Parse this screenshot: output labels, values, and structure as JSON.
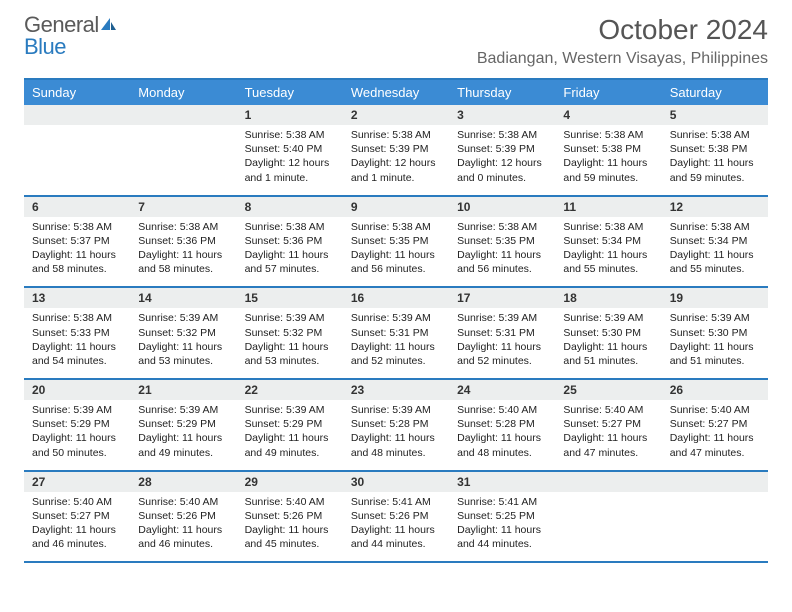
{
  "logo": {
    "word1": "General",
    "word2": "Blue"
  },
  "header": {
    "title": "October 2024",
    "location": "Badiangan, Western Visayas, Philippines"
  },
  "colors": {
    "header_bg": "#3b8bd4",
    "border": "#2a7bbf",
    "daynum_bg": "#eceeee",
    "text": "#333333",
    "logo_gray": "#5a5a5a",
    "logo_blue": "#2a7bbf"
  },
  "weekdays": [
    "Sunday",
    "Monday",
    "Tuesday",
    "Wednesday",
    "Thursday",
    "Friday",
    "Saturday"
  ],
  "weeks": [
    [
      null,
      null,
      {
        "n": "1",
        "sr": "Sunrise: 5:38 AM",
        "ss": "Sunset: 5:40 PM",
        "dl": "Daylight: 12 hours and 1 minute."
      },
      {
        "n": "2",
        "sr": "Sunrise: 5:38 AM",
        "ss": "Sunset: 5:39 PM",
        "dl": "Daylight: 12 hours and 1 minute."
      },
      {
        "n": "3",
        "sr": "Sunrise: 5:38 AM",
        "ss": "Sunset: 5:39 PM",
        "dl": "Daylight: 12 hours and 0 minutes."
      },
      {
        "n": "4",
        "sr": "Sunrise: 5:38 AM",
        "ss": "Sunset: 5:38 PM",
        "dl": "Daylight: 11 hours and 59 minutes."
      },
      {
        "n": "5",
        "sr": "Sunrise: 5:38 AM",
        "ss": "Sunset: 5:38 PM",
        "dl": "Daylight: 11 hours and 59 minutes."
      }
    ],
    [
      {
        "n": "6",
        "sr": "Sunrise: 5:38 AM",
        "ss": "Sunset: 5:37 PM",
        "dl": "Daylight: 11 hours and 58 minutes."
      },
      {
        "n": "7",
        "sr": "Sunrise: 5:38 AM",
        "ss": "Sunset: 5:36 PM",
        "dl": "Daylight: 11 hours and 58 minutes."
      },
      {
        "n": "8",
        "sr": "Sunrise: 5:38 AM",
        "ss": "Sunset: 5:36 PM",
        "dl": "Daylight: 11 hours and 57 minutes."
      },
      {
        "n": "9",
        "sr": "Sunrise: 5:38 AM",
        "ss": "Sunset: 5:35 PM",
        "dl": "Daylight: 11 hours and 56 minutes."
      },
      {
        "n": "10",
        "sr": "Sunrise: 5:38 AM",
        "ss": "Sunset: 5:35 PM",
        "dl": "Daylight: 11 hours and 56 minutes."
      },
      {
        "n": "11",
        "sr": "Sunrise: 5:38 AM",
        "ss": "Sunset: 5:34 PM",
        "dl": "Daylight: 11 hours and 55 minutes."
      },
      {
        "n": "12",
        "sr": "Sunrise: 5:38 AM",
        "ss": "Sunset: 5:34 PM",
        "dl": "Daylight: 11 hours and 55 minutes."
      }
    ],
    [
      {
        "n": "13",
        "sr": "Sunrise: 5:38 AM",
        "ss": "Sunset: 5:33 PM",
        "dl": "Daylight: 11 hours and 54 minutes."
      },
      {
        "n": "14",
        "sr": "Sunrise: 5:39 AM",
        "ss": "Sunset: 5:32 PM",
        "dl": "Daylight: 11 hours and 53 minutes."
      },
      {
        "n": "15",
        "sr": "Sunrise: 5:39 AM",
        "ss": "Sunset: 5:32 PM",
        "dl": "Daylight: 11 hours and 53 minutes."
      },
      {
        "n": "16",
        "sr": "Sunrise: 5:39 AM",
        "ss": "Sunset: 5:31 PM",
        "dl": "Daylight: 11 hours and 52 minutes."
      },
      {
        "n": "17",
        "sr": "Sunrise: 5:39 AM",
        "ss": "Sunset: 5:31 PM",
        "dl": "Daylight: 11 hours and 52 minutes."
      },
      {
        "n": "18",
        "sr": "Sunrise: 5:39 AM",
        "ss": "Sunset: 5:30 PM",
        "dl": "Daylight: 11 hours and 51 minutes."
      },
      {
        "n": "19",
        "sr": "Sunrise: 5:39 AM",
        "ss": "Sunset: 5:30 PM",
        "dl": "Daylight: 11 hours and 51 minutes."
      }
    ],
    [
      {
        "n": "20",
        "sr": "Sunrise: 5:39 AM",
        "ss": "Sunset: 5:29 PM",
        "dl": "Daylight: 11 hours and 50 minutes."
      },
      {
        "n": "21",
        "sr": "Sunrise: 5:39 AM",
        "ss": "Sunset: 5:29 PM",
        "dl": "Daylight: 11 hours and 49 minutes."
      },
      {
        "n": "22",
        "sr": "Sunrise: 5:39 AM",
        "ss": "Sunset: 5:29 PM",
        "dl": "Daylight: 11 hours and 49 minutes."
      },
      {
        "n": "23",
        "sr": "Sunrise: 5:39 AM",
        "ss": "Sunset: 5:28 PM",
        "dl": "Daylight: 11 hours and 48 minutes."
      },
      {
        "n": "24",
        "sr": "Sunrise: 5:40 AM",
        "ss": "Sunset: 5:28 PM",
        "dl": "Daylight: 11 hours and 48 minutes."
      },
      {
        "n": "25",
        "sr": "Sunrise: 5:40 AM",
        "ss": "Sunset: 5:27 PM",
        "dl": "Daylight: 11 hours and 47 minutes."
      },
      {
        "n": "26",
        "sr": "Sunrise: 5:40 AM",
        "ss": "Sunset: 5:27 PM",
        "dl": "Daylight: 11 hours and 47 minutes."
      }
    ],
    [
      {
        "n": "27",
        "sr": "Sunrise: 5:40 AM",
        "ss": "Sunset: 5:27 PM",
        "dl": "Daylight: 11 hours and 46 minutes."
      },
      {
        "n": "28",
        "sr": "Sunrise: 5:40 AM",
        "ss": "Sunset: 5:26 PM",
        "dl": "Daylight: 11 hours and 46 minutes."
      },
      {
        "n": "29",
        "sr": "Sunrise: 5:40 AM",
        "ss": "Sunset: 5:26 PM",
        "dl": "Daylight: 11 hours and 45 minutes."
      },
      {
        "n": "30",
        "sr": "Sunrise: 5:41 AM",
        "ss": "Sunset: 5:26 PM",
        "dl": "Daylight: 11 hours and 44 minutes."
      },
      {
        "n": "31",
        "sr": "Sunrise: 5:41 AM",
        "ss": "Sunset: 5:25 PM",
        "dl": "Daylight: 11 hours and 44 minutes."
      },
      null,
      null
    ]
  ]
}
